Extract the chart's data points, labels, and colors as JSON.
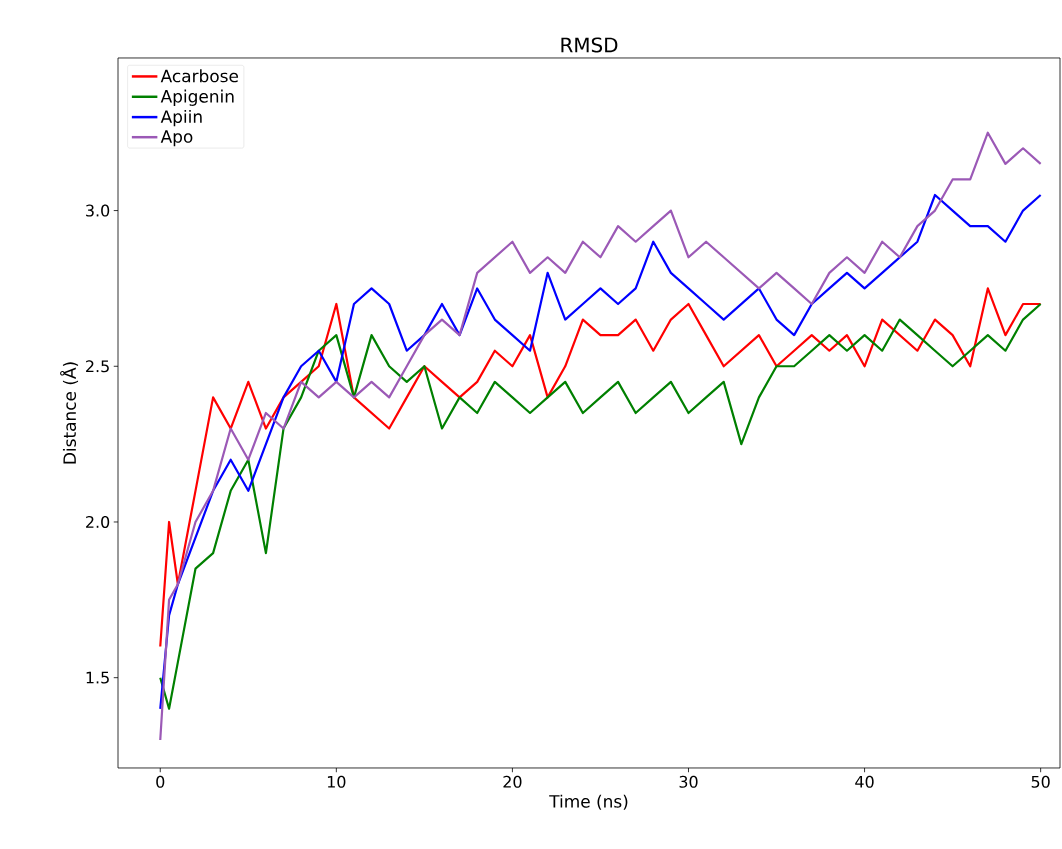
{
  "chart_data": {
    "type": "line",
    "title": "RMSD",
    "xlabel": "Time (ns)",
    "ylabel": "Distance (Å)",
    "x": [
      0,
      0.5,
      1,
      2,
      3,
      4,
      5,
      6,
      7,
      8,
      9,
      10,
      11,
      12,
      13,
      14,
      15,
      16,
      17,
      18,
      19,
      20,
      21,
      22,
      23,
      24,
      25,
      26,
      27,
      28,
      29,
      30,
      31,
      32,
      33,
      34,
      35,
      36,
      37,
      38,
      39,
      40,
      41,
      42,
      43,
      44,
      45,
      46,
      47,
      48,
      49,
      50
    ],
    "series": [
      {
        "name": "Acarbose",
        "color": "#ff0000",
        "values": [
          1.6,
          2.0,
          1.8,
          2.1,
          2.4,
          2.3,
          2.45,
          2.3,
          2.4,
          2.45,
          2.5,
          2.7,
          2.4,
          2.35,
          2.3,
          2.4,
          2.5,
          2.45,
          2.4,
          2.45,
          2.55,
          2.5,
          2.6,
          2.4,
          2.5,
          2.65,
          2.6,
          2.6,
          2.65,
          2.55,
          2.65,
          2.7,
          2.6,
          2.5,
          2.55,
          2.6,
          2.5,
          2.55,
          2.6,
          2.55,
          2.6,
          2.5,
          2.65,
          2.6,
          2.55,
          2.65,
          2.6,
          2.5,
          2.75,
          2.6,
          2.7,
          2.7
        ]
      },
      {
        "name": "Apigenin",
        "color": "#008000",
        "values": [
          1.5,
          1.4,
          1.55,
          1.85,
          1.9,
          2.1,
          2.2,
          1.9,
          2.3,
          2.4,
          2.55,
          2.6,
          2.4,
          2.6,
          2.5,
          2.45,
          2.5,
          2.3,
          2.4,
          2.35,
          2.45,
          2.4,
          2.35,
          2.4,
          2.45,
          2.35,
          2.4,
          2.45,
          2.35,
          2.4,
          2.45,
          2.35,
          2.4,
          2.45,
          2.25,
          2.4,
          2.5,
          2.5,
          2.55,
          2.6,
          2.55,
          2.6,
          2.55,
          2.65,
          2.6,
          2.55,
          2.5,
          2.55,
          2.6,
          2.55,
          2.65,
          2.7
        ]
      },
      {
        "name": "Apiin",
        "color": "#0000ff",
        "values": [
          1.4,
          1.7,
          1.8,
          1.95,
          2.1,
          2.2,
          2.1,
          2.25,
          2.4,
          2.5,
          2.55,
          2.45,
          2.7,
          2.75,
          2.7,
          2.55,
          2.6,
          2.7,
          2.6,
          2.75,
          2.65,
          2.6,
          2.55,
          2.8,
          2.65,
          2.7,
          2.75,
          2.7,
          2.75,
          2.9,
          2.8,
          2.75,
          2.7,
          2.65,
          2.7,
          2.75,
          2.65,
          2.6,
          2.7,
          2.75,
          2.8,
          2.75,
          2.8,
          2.85,
          2.9,
          3.05,
          3.0,
          2.95,
          2.95,
          2.9,
          3.0,
          3.05
        ]
      },
      {
        "name": "Apo",
        "color": "#9b59b6",
        "values": [
          1.3,
          1.75,
          1.8,
          2.0,
          2.1,
          2.3,
          2.2,
          2.35,
          2.3,
          2.45,
          2.4,
          2.45,
          2.4,
          2.45,
          2.4,
          2.5,
          2.6,
          2.65,
          2.6,
          2.8,
          2.85,
          2.9,
          2.8,
          2.85,
          2.8,
          2.9,
          2.85,
          2.95,
          2.9,
          2.95,
          3.0,
          2.85,
          2.9,
          2.85,
          2.8,
          2.75,
          2.8,
          2.75,
          2.7,
          2.8,
          2.85,
          2.8,
          2.9,
          2.85,
          2.95,
          3.0,
          3.1,
          3.1,
          3.25,
          3.15,
          3.2,
          3.15
        ]
      }
    ],
    "xlim": [
      -2.4,
      51.1
    ],
    "ylim": [
      1.21,
      3.49
    ],
    "xticks": [
      0,
      10,
      20,
      30,
      40,
      50
    ],
    "yticks": [
      {
        "value": 1.5,
        "label": "1.5"
      },
      {
        "value": 2.0,
        "label": "2.0"
      },
      {
        "value": 2.5,
        "label": "2.5"
      },
      {
        "value": 3.0,
        "label": "3.0"
      }
    ],
    "legend": "top left",
    "grid": false
  }
}
